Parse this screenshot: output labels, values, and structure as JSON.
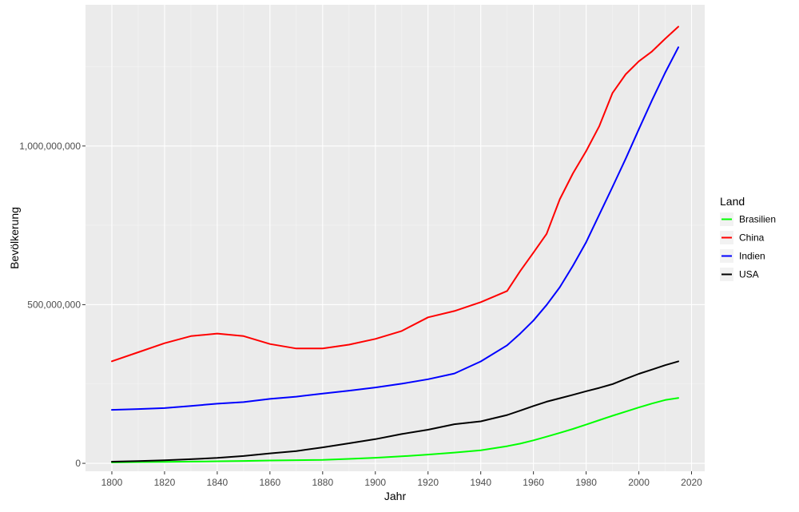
{
  "chart_data": {
    "type": "line",
    "xlabel": "Jahr",
    "ylabel": "Bevölkerung",
    "xlim": [
      1790,
      2025
    ],
    "ylim": [
      -25000000,
      1445000000
    ],
    "x_ticks": [
      1800,
      1820,
      1840,
      1860,
      1880,
      1900,
      1920,
      1940,
      1960,
      1980,
      2000,
      2020
    ],
    "x_tick_labels": [
      "1800",
      "1820",
      "1840",
      "1860",
      "1880",
      "1900",
      "1920",
      "1940",
      "1960",
      "1980",
      "2000",
      "2020"
    ],
    "x_minor_ticks": [
      1810,
      1830,
      1850,
      1870,
      1890,
      1910,
      1930,
      1950,
      1970,
      1990,
      2010
    ],
    "y_ticks": [
      0,
      500000000,
      1000000000
    ],
    "y_tick_labels": [
      "0",
      "500,000,000",
      "1,000,000,000"
    ],
    "y_minor_ticks": [
      250000000,
      750000000,
      1250000000
    ],
    "grid": true,
    "legend": {
      "title": "Land",
      "position": "right"
    },
    "x": [
      1800,
      1810,
      1820,
      1830,
      1840,
      1850,
      1860,
      1870,
      1880,
      1890,
      1900,
      1910,
      1920,
      1930,
      1940,
      1950,
      1955,
      1960,
      1965,
      1970,
      1975,
      1980,
      1985,
      1990,
      1995,
      2000,
      2005,
      2010,
      2015
    ],
    "series": [
      {
        "name": "Brasilien",
        "color": "#00ff00",
        "values": [
          3000000,
          4000000,
          4500000,
          5500000,
          6500000,
          7500000,
          9000000,
          10000000,
          11000000,
          14000000,
          17500000,
          22000000,
          27500000,
          34000000,
          41000000,
          54000000,
          62000000,
          72500000,
          84000000,
          96000000,
          108500000,
          122000000,
          136000000,
          150000000,
          163000000,
          176000000,
          188500000,
          199500000,
          206000000
        ]
      },
      {
        "name": "China",
        "color": "#ff0000",
        "values": [
          321500000,
          350000000,
          378500000,
          401000000,
          409000000,
          401000000,
          376000000,
          362000000,
          362000000,
          374000000,
          392000000,
          417000000,
          460000000,
          480000000,
          508000000,
          543000000,
          606000000,
          664000000,
          723000000,
          832000000,
          914000000,
          984000000,
          1063000000,
          1167000000,
          1226000000,
          1267000000,
          1298000000,
          1338000000,
          1376000000
        ]
      },
      {
        "name": "Indien",
        "color": "#0000ff",
        "values": [
          168500000,
          171000000,
          174000000,
          181000000,
          188000000,
          193000000,
          203000000,
          210000000,
          220000000,
          229000000,
          239000000,
          251000000,
          265000000,
          283000000,
          321000000,
          372000000,
          409000000,
          450000000,
          499000000,
          555000000,
          623000000,
          697000000,
          784000000,
          871000000,
          960000000,
          1053000000,
          1144000000,
          1231000000,
          1311000000
        ]
      },
      {
        "name": "USA",
        "color": "#000000",
        "values": [
          5300000,
          7200000,
          9600000,
          12900000,
          17100000,
          23200000,
          31400000,
          38600000,
          50200000,
          63000000,
          76200000,
          92200000,
          106000000,
          123200000,
          132200000,
          152300000,
          166000000,
          180700000,
          194300000,
          205100000,
          216000000,
          227200000,
          237900000,
          249600000,
          266300000,
          282200000,
          295500000,
          309300000,
          321400000
        ]
      }
    ]
  }
}
